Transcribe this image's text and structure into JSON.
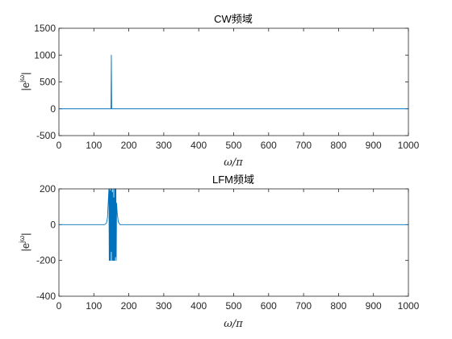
{
  "chart_data": [
    {
      "type": "line",
      "title": "CW频域",
      "xlabel": "ω/π",
      "ylabel": "|e^{jω}|",
      "ylabel_base": "|e",
      "ylabel_sup": "jω",
      "ylabel_close": "|",
      "xlim": [
        0,
        1000
      ],
      "ylim": [
        -500,
        1500
      ],
      "xticks": [
        0,
        100,
        200,
        300,
        400,
        500,
        600,
        700,
        800,
        900,
        1000
      ],
      "yticks": [
        -500,
        0,
        500,
        1000,
        1500
      ],
      "grid": false,
      "series": [
        {
          "color": "#0072bd",
          "x": [
            0,
            149,
            150,
            151,
            1000
          ],
          "y": [
            0,
            0,
            1000,
            0,
            0
          ]
        }
      ]
    },
    {
      "type": "line",
      "title": "LFM频域",
      "xlabel": "ω/π",
      "ylabel": "|e^{jω}|",
      "ylabel_base": "|e",
      "ylabel_sup": "jω",
      "ylabel_close": "|",
      "xlim": [
        0,
        1000
      ],
      "ylim": [
        -400,
        200
      ],
      "xticks": [
        0,
        100,
        200,
        300,
        400,
        500,
        600,
        700,
        800,
        900,
        1000
      ],
      "yticks": [
        -400,
        -200,
        0,
        200
      ],
      "grid": false,
      "series": [
        {
          "color": "#0072bd",
          "x": [
            0,
            130,
            136,
            139,
            141,
            143,
            144,
            145,
            146,
            147,
            148,
            149,
            150,
            151,
            152,
            153,
            154,
            155,
            156,
            157,
            158,
            159,
            160,
            161,
            162,
            163,
            164,
            165,
            167,
            170,
            175,
            1000
          ],
          "y": [
            0,
            0,
            8,
            40,
            120,
            200,
            -200,
            200,
            -200,
            190,
            -200,
            200,
            -150,
            200,
            -200,
            180,
            -200,
            200,
            -200,
            150,
            -200,
            200,
            -200,
            200,
            -180,
            200,
            -200,
            120,
            60,
            15,
            0,
            0
          ]
        }
      ]
    }
  ]
}
